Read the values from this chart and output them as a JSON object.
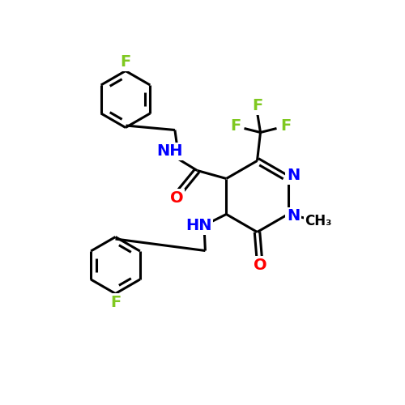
{
  "background_color": "#ffffff",
  "atom_color_C": "#000000",
  "atom_color_N": "#0000ff",
  "atom_color_O": "#ff0000",
  "atom_color_F": "#7fc820",
  "bond_color": "#000000",
  "bond_width": 2.2,
  "figsize": [
    5.0,
    5.0
  ],
  "dpi": 100,
  "font_size_atom": 14,
  "font_size_methyl": 12,
  "xlim": [
    0,
    10
  ],
  "ylim": [
    0,
    10
  ]
}
